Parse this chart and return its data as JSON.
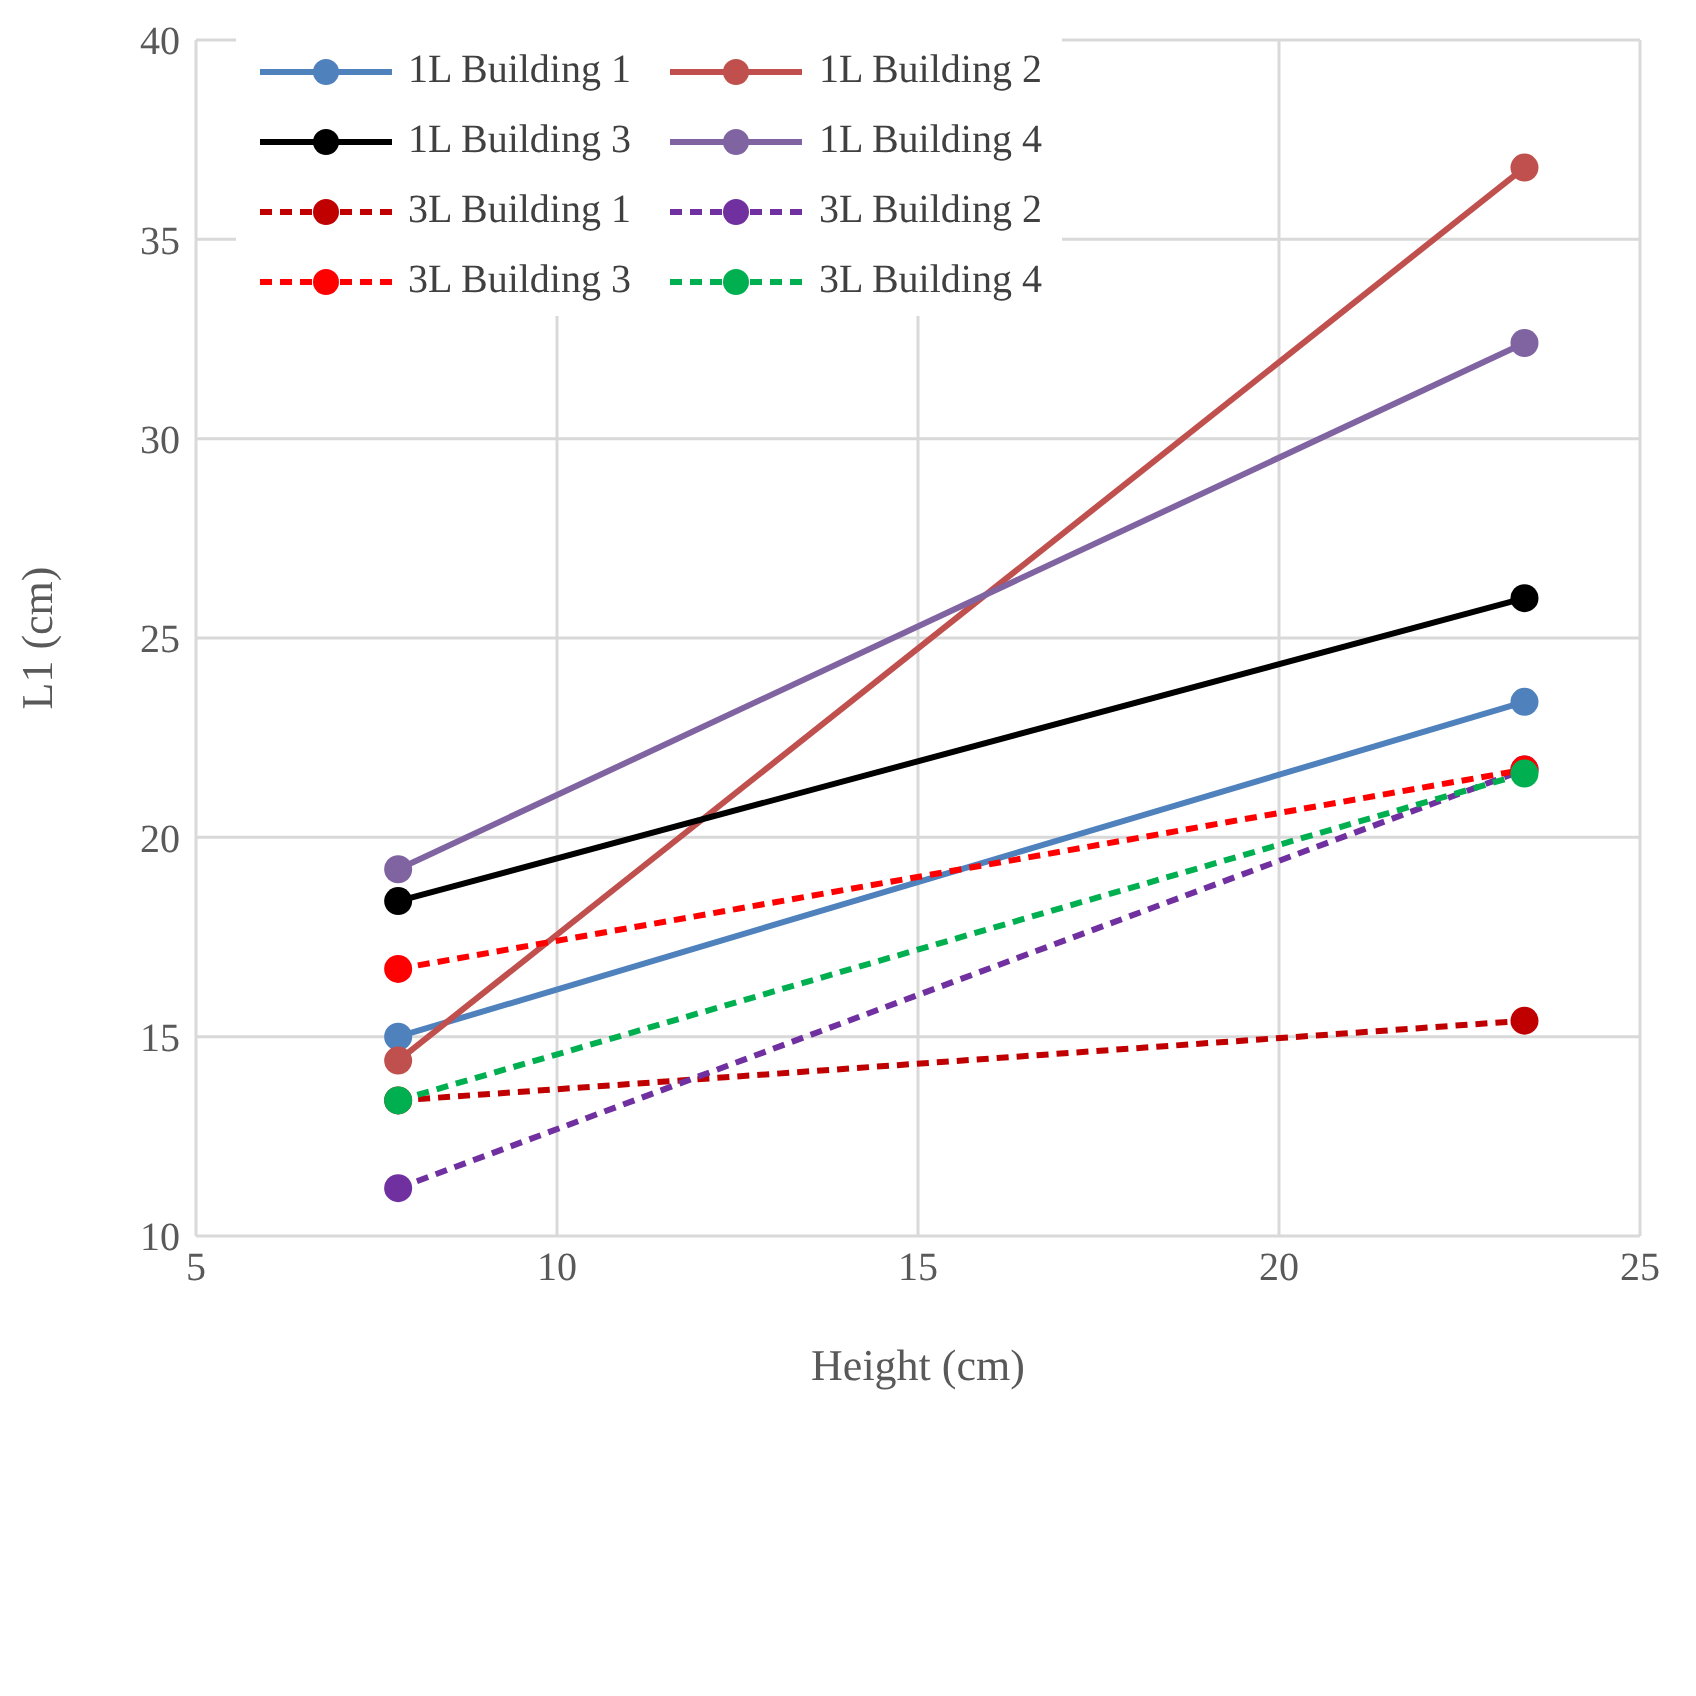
{
  "chart_data": {
    "type": "line",
    "xlabel": "Height (cm)",
    "ylabel": "L1 (cm)",
    "xlim": [
      5,
      25
    ],
    "xticks": [
      5,
      10,
      15,
      20,
      25
    ],
    "ylim": [
      10,
      40
    ],
    "yticks": [
      10,
      15,
      20,
      25,
      30,
      35,
      40
    ],
    "grid": true,
    "legend": "top",
    "marker": "circle",
    "x": [
      7.8,
      23.4
    ],
    "series": [
      {
        "name": "1L Building 1",
        "color": "#4f81bd",
        "values": [
          15.0,
          23.4
        ],
        "line_style": "solid"
      },
      {
        "name": "1L Building 2",
        "color": "#c0504d",
        "values": [
          14.4,
          36.8
        ],
        "line_style": "solid"
      },
      {
        "name": "1L Building 3",
        "color": "#000000",
        "values": [
          18.4,
          26.0
        ],
        "line_style": "solid"
      },
      {
        "name": "1L Building 4",
        "color": "#8064a2",
        "values": [
          19.2,
          32.4
        ],
        "line_style": "solid"
      },
      {
        "name": "3L Building 1",
        "color": "#c00000",
        "values": [
          13.4,
          15.4
        ],
        "line_style": "dashed"
      },
      {
        "name": "3L Building 2",
        "color": "#7030a0",
        "values": [
          11.2,
          21.7
        ],
        "line_style": "dashed"
      },
      {
        "name": "3L Building 3",
        "color": "#ff0000",
        "values": [
          16.7,
          21.7
        ],
        "line_style": "dashed"
      },
      {
        "name": "3L Building 4",
        "color": "#00b050",
        "values": [
          13.4,
          21.6
        ],
        "line_style": "dashed"
      }
    ]
  }
}
